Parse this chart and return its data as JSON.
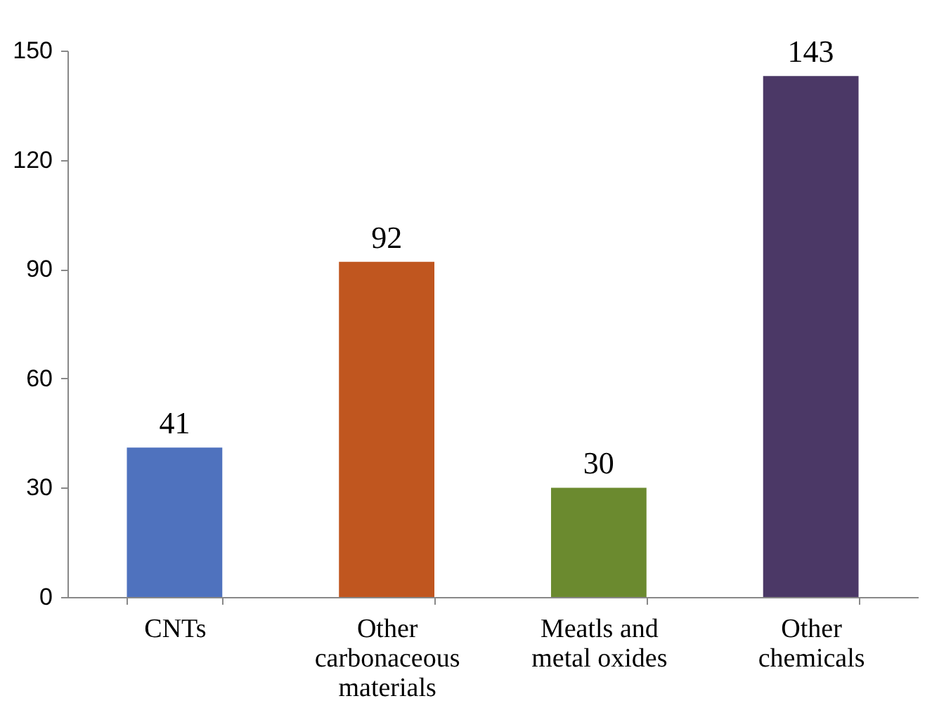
{
  "chart_data": {
    "type": "bar",
    "categories": [
      "CNTs",
      "Other carbonaceous materials",
      "Meatls and metal oxides",
      "Other chemicals"
    ],
    "values": [
      41,
      92,
      30,
      143
    ],
    "colors": [
      "#4f72be",
      "#c0561f",
      "#6b8a2f",
      "#4b3866"
    ],
    "ylim": [
      0,
      150
    ],
    "yticks": [
      0,
      30,
      60,
      90,
      120,
      150
    ],
    "data_labels": true,
    "grid": false,
    "legend": false
  }
}
